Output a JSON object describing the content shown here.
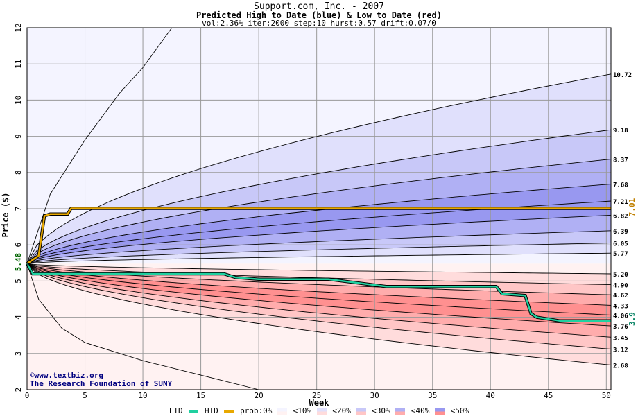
{
  "chart_data": {
    "type": "area",
    "title": "Support.com, Inc. - 2007",
    "subtitle": "Predicted High to Date (blue) &  Low to Date (red)",
    "params": "vol:2.36% iter:2000 step:10 hurst:0.57 drift:0.07/0",
    "xlabel": "Week",
    "ylabel": "Price ($)",
    "xlim": [
      0,
      50.4
    ],
    "ylim": [
      2,
      12
    ],
    "x_ticks": [
      0,
      5,
      10,
      15,
      20,
      25,
      30,
      35,
      40,
      45,
      50
    ],
    "y_ticks": [
      2,
      3,
      4,
      5,
      6,
      7,
      8,
      9,
      10,
      11,
      12
    ],
    "grid": true,
    "start_price": 5.48,
    "start_label": "5.48",
    "htd_current": 7.01,
    "htd_label": "7.01",
    "ltd_current": 3.9,
    "ltd_label": "3.9",
    "high_quantiles": [
      {
        "end": 10.72,
        "label": "10.72",
        "k": 1.0
      },
      {
        "end": 9.18,
        "label": "9.18",
        "k": 1.0
      },
      {
        "end": 8.37,
        "label": "8.37",
        "k": 1.0
      },
      {
        "end": 7.68,
        "label": "7.68",
        "k": 1.0
      },
      {
        "end": 7.21,
        "label": "7.21",
        "k": 1.0
      },
      {
        "end": 6.82,
        "label": "6.82",
        "k": 1.0
      },
      {
        "end": 6.39,
        "label": "6.39",
        "k": 1.0
      },
      {
        "end": 6.05,
        "label": "6.05",
        "k": 1.0
      },
      {
        "end": 5.77,
        "label": "5.77",
        "k": 1.0
      }
    ],
    "low_quantiles": [
      {
        "end": 5.2,
        "label": "5.20"
      },
      {
        "end": 4.9,
        "label": "4.90"
      },
      {
        "end": 4.62,
        "label": "4.62"
      },
      {
        "end": 4.33,
        "label": "4.33"
      },
      {
        "end": 4.06,
        "label": "4.06"
      },
      {
        "end": 3.76,
        "label": "3.76"
      },
      {
        "end": 3.45,
        "label": "3.45"
      },
      {
        "end": 3.12,
        "label": "3.12"
      },
      {
        "end": 2.68,
        "label": "2.68"
      }
    ],
    "outer_high_envelope": [
      [
        0,
        5.48
      ],
      [
        2,
        7.4
      ],
      [
        5,
        8.9
      ],
      [
        8,
        10.2
      ],
      [
        10,
        10.9
      ],
      [
        12.5,
        12.0
      ]
    ],
    "outer_low_envelope": [
      [
        0,
        5.48
      ],
      [
        1,
        4.5
      ],
      [
        3,
        3.7
      ],
      [
        5,
        3.3
      ],
      [
        10,
        2.8
      ],
      [
        15,
        2.4
      ],
      [
        20,
        2.0
      ]
    ],
    "htd_series": [
      [
        0,
        5.48
      ],
      [
        1,
        5.7
      ],
      [
        1.5,
        6.8
      ],
      [
        2,
        6.85
      ],
      [
        3.5,
        6.85
      ],
      [
        3.8,
        7.01
      ],
      [
        50.4,
        7.01
      ]
    ],
    "ltd_series": [
      [
        0,
        5.48
      ],
      [
        0.5,
        5.2
      ],
      [
        17,
        5.2
      ],
      [
        18,
        5.1
      ],
      [
        20,
        5.05
      ],
      [
        26,
        5.05
      ],
      [
        31,
        4.85
      ],
      [
        40.5,
        4.85
      ],
      [
        41,
        4.65
      ],
      [
        43,
        4.6
      ],
      [
        43.5,
        4.1
      ],
      [
        44,
        4.0
      ],
      [
        46,
        3.9
      ],
      [
        50.4,
        3.9
      ]
    ]
  },
  "watermark": {
    "line1": "©www.textbiz.org",
    "line2": "The Research Foundation of SUNY"
  },
  "legend": {
    "ltd": "LTD",
    "htd": "HTD",
    "prob": "prob:0%",
    "b10": "<10%",
    "b20": "<20%",
    "b30": "<30%",
    "b40": "<40%",
    "b50": "<50%",
    "colors": {
      "ltd": "#20d0a0",
      "htd": "#e8a800",
      "blue_bands": [
        "#f4f4ff",
        "#e0e0fc",
        "#c8c8f8",
        "#b0b0f4",
        "#9898f0"
      ],
      "red_bands": [
        "#fff2f2",
        "#ffdcdc",
        "#ffc6c6",
        "#ffacac",
        "#ff9090"
      ]
    }
  }
}
